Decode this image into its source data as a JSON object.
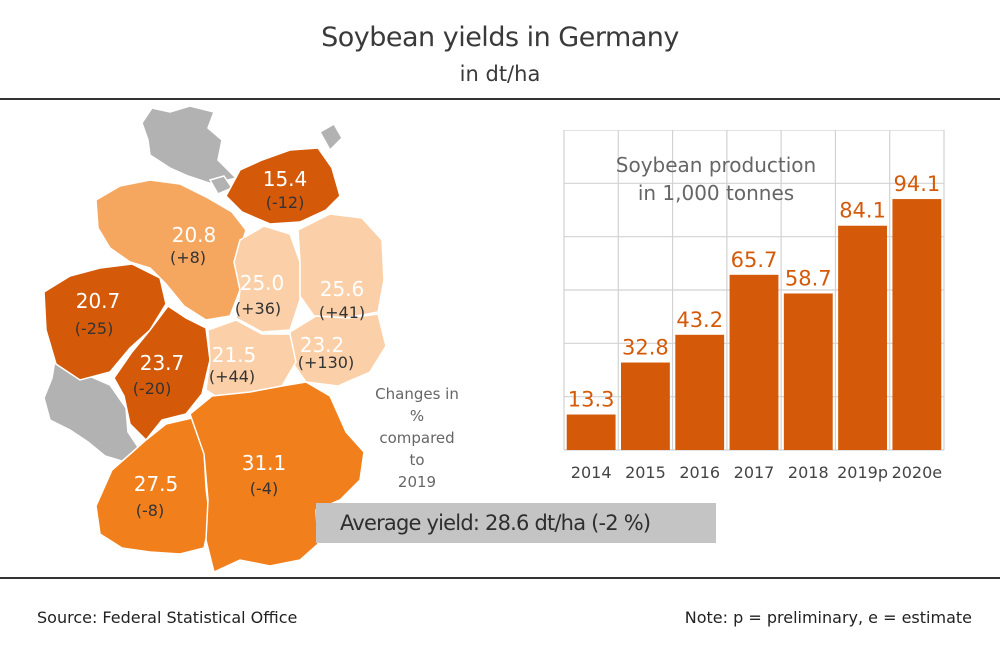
{
  "header": {
    "title": "Soybean yields in Germany",
    "subtitle": "in dt/ha"
  },
  "map": {
    "changes_note_line1": "Changes in %",
    "changes_note_line2": "compared to",
    "changes_note_line3": "2019",
    "average_label": "Average yield: 28.6 dt/ha (-2 %)",
    "colors": {
      "dark": "#d45a0a",
      "mid": "#f07f1c",
      "light": "#f6a75f",
      "pale": "#fbd0a8",
      "none": "#b2b2b2"
    },
    "regions": [
      {
        "id": "mv",
        "yield": "15.4",
        "change": "(-12)",
        "shade": "dark"
      },
      {
        "id": "ni",
        "yield": "20.8",
        "change": "(+8)",
        "shade": "light"
      },
      {
        "id": "st",
        "yield": "25.0",
        "change": "(+36)",
        "shade": "pale"
      },
      {
        "id": "bb",
        "yield": "25.6",
        "change": "(+41)",
        "shade": "pale"
      },
      {
        "id": "nw",
        "yield": "20.7",
        "change": "(-25)",
        "shade": "dark"
      },
      {
        "id": "sn",
        "yield": "23.2",
        "change": "(+130)",
        "shade": "pale"
      },
      {
        "id": "he",
        "yield": "23.7",
        "change": "(-20)",
        "shade": "dark"
      },
      {
        "id": "th",
        "yield": "21.5",
        "change": "(+44)",
        "shade": "pale"
      },
      {
        "id": "bw",
        "yield": "27.5",
        "change": "(-8)",
        "shade": "mid"
      },
      {
        "id": "by",
        "yield": "31.1",
        "change": "(-4)",
        "shade": "mid"
      }
    ]
  },
  "chart_data": {
    "type": "bar",
    "title": "Soybean production in 1,000 tonnes",
    "title_line1": "Soybean production",
    "title_line2": "in 1,000 tonnes",
    "categories": [
      "2014",
      "2015",
      "2016",
      "2017",
      "2018",
      "2019p",
      "2020e"
    ],
    "values": [
      13.3,
      32.8,
      43.2,
      65.7,
      58.7,
      84.1,
      94.1
    ],
    "value_labels": [
      "13.3",
      "32.8",
      "43.2",
      "65.7",
      "58.7",
      "84.1",
      "94.1"
    ],
    "ylim": [
      0,
      120
    ],
    "grid": true,
    "bar_color": "#d45a0a",
    "label_color": "#d45a0a"
  },
  "footer": {
    "source": "Source: Federal Statistical Office",
    "note": "Note: p = preliminary, e = estimate"
  }
}
